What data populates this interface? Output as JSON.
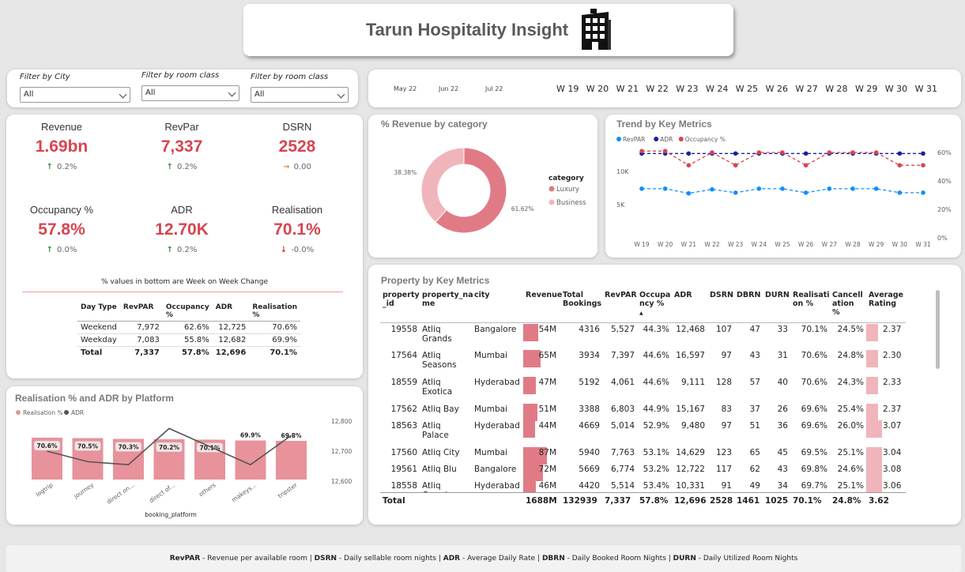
{
  "title": "Tarun Hospitality Insight",
  "filters": [
    {
      "label": "Filter by City",
      "value": "All"
    },
    {
      "label": "Filter by room class",
      "value": "All"
    },
    {
      "label": "Filter by room class",
      "value": "All"
    }
  ],
  "timeline": {
    "months": [
      "May 22",
      "Jun 22",
      "Jul 22"
    ],
    "weeks": [
      "W 19",
      "W 20",
      "W 21",
      "W 22",
      "W 23",
      "W 24",
      "W 25",
      "W 26",
      "W 27",
      "W 28",
      "W 29",
      "W 30",
      "W 31"
    ]
  },
  "kpis": [
    {
      "label": "Revenue",
      "value": "1.69bn",
      "delta": "0.2%",
      "dir": "up"
    },
    {
      "label": "RevPar",
      "value": "7,337",
      "delta": "0.2%",
      "dir": "up"
    },
    {
      "label": "DSRN",
      "value": "2528",
      "delta": "0.00",
      "dir": "flat"
    },
    {
      "label": "Occupancy %",
      "value": "57.8%",
      "delta": "0.0%",
      "dir": "up"
    },
    {
      "label": "ADR",
      "value": "12.70K",
      "delta": "0.2%",
      "dir": "up"
    },
    {
      "label": "Realisation",
      "value": "70.1%",
      "delta": "-0.0%",
      "dir": "down"
    }
  ],
  "wow_note": "% values in bottom are Week on Week Change",
  "daytype_table": {
    "headers": [
      "Day Type",
      "RevPAR",
      "Occupancy %",
      "ADR",
      "Realisation %"
    ],
    "rows": [
      [
        "Weekend",
        "7,972",
        "62.6%",
        "12,725",
        "70.6%"
      ],
      [
        "Weekday",
        "7,083",
        "55.8%",
        "12,682",
        "69.9%"
      ]
    ],
    "total": [
      "Total",
      "7,337",
      "57.8%",
      "12,696",
      "70.1%"
    ]
  },
  "category_chart": {
    "title": "% Revenue by category",
    "legend_title": "category",
    "colors": {
      "Luxury": "#e07b86",
      "Business": "#f0b5bb"
    },
    "chart_data": {
      "type": "pie",
      "categories": [
        "Luxury",
        "Business"
      ],
      "values": [
        61.62,
        38.38
      ],
      "labels": [
        "61.62%",
        "38.38%"
      ]
    }
  },
  "trend_chart": {
    "title": "Trend by Key Metrics",
    "legend": [
      "RevPAR",
      "ADR",
      "Occupancy %"
    ],
    "colors": {
      "RevPAR": "#118dff",
      "ADR": "#12239e",
      "Occupancy %": "#d64550"
    },
    "left_ticks": [
      "10K",
      "5K"
    ],
    "right_ticks": [
      "60%",
      "40%",
      "20%",
      "0%"
    ],
    "chart_data": {
      "type": "line",
      "x": [
        "W 19",
        "W 20",
        "W 21",
        "W 22",
        "W 23",
        "W 24",
        "W 25",
        "W 26",
        "W 27",
        "W 28",
        "W 29",
        "W 30",
        "W 31"
      ],
      "series": [
        {
          "name": "RevPAR",
          "axis": "left",
          "values": [
            7400,
            7400,
            6700,
            7300,
            6800,
            7400,
            7400,
            6800,
            7400,
            7400,
            7400,
            6800,
            6800
          ]
        },
        {
          "name": "ADR",
          "axis": "left",
          "values": [
            12700,
            12700,
            12700,
            12700,
            12700,
            12700,
            12700,
            12700,
            12700,
            12700,
            12700,
            12700,
            12700
          ]
        },
        {
          "name": "Occupancy %",
          "axis": "right",
          "values": [
            61,
            61,
            51,
            60,
            51,
            60,
            60,
            51,
            60,
            60,
            60,
            51,
            51
          ]
        }
      ],
      "ylim_left": [
        0,
        15000
      ],
      "ylim_right": [
        0,
        70
      ]
    }
  },
  "property_table": {
    "title": "Property by Key Metrics",
    "headers": [
      "property_id",
      "property_name",
      "city",
      "Revenue",
      "Total Bookings",
      "RevPAR",
      "Occupancy %",
      "ADR",
      "DSRN",
      "DBRN",
      "DURN",
      "Realisation %",
      "Cancellation %",
      "Average Rating"
    ],
    "header_display": [
      "property\n_id",
      "property_na\nme",
      "city",
      "Revenue",
      "Total\nBookings",
      "RevPAR",
      "Occupa\nncy %",
      "ADR",
      "DSRN",
      "DBRN",
      "DURN",
      "Realisati\non %",
      "Cancell\nation %",
      "Average\nRating"
    ],
    "rows": [
      {
        "id": "19558",
        "name": "Atliq Grands",
        "city": "Bangalore",
        "revenue": "54M",
        "rev_val": 54,
        "bookings": "4316",
        "revpar": "5,527",
        "occ": "44.3%",
        "adr": "12,468",
        "dsrn": "107",
        "dbrn": "47",
        "durn": "33",
        "real": "70.1%",
        "canc": "24.5%",
        "rating": "2.37",
        "rating_val": 2.37
      },
      {
        "id": "17564",
        "name": "Atliq Seasons",
        "city": "Mumbai",
        "revenue": "65M",
        "rev_val": 65,
        "bookings": "3934",
        "revpar": "7,397",
        "occ": "44.6%",
        "adr": "16,597",
        "dsrn": "97",
        "dbrn": "43",
        "durn": "31",
        "real": "70.6%",
        "canc": "24.8%",
        "rating": "2.30",
        "rating_val": 2.3
      },
      {
        "id": "18559",
        "name": "Atliq Exotica",
        "city": "Hyderabad",
        "revenue": "47M",
        "rev_val": 47,
        "bookings": "5192",
        "revpar": "4,061",
        "occ": "44.6%",
        "adr": "9,111",
        "dsrn": "128",
        "dbrn": "57",
        "durn": "40",
        "real": "70.6%",
        "canc": "24.3%",
        "rating": "2.33",
        "rating_val": 2.33
      },
      {
        "id": "17562",
        "name": "Atliq Bay",
        "city": "Mumbai",
        "revenue": "51M",
        "rev_val": 51,
        "bookings": "3388",
        "revpar": "6,803",
        "occ": "44.9%",
        "adr": "15,167",
        "dsrn": "83",
        "dbrn": "37",
        "durn": "26",
        "real": "69.6%",
        "canc": "25.4%",
        "rating": "2.37",
        "rating_val": 2.37
      },
      {
        "id": "18563",
        "name": "Atliq Palace",
        "city": "Hyderabad",
        "revenue": "44M",
        "rev_val": 44,
        "bookings": "4669",
        "revpar": "5,014",
        "occ": "52.9%",
        "adr": "9,480",
        "dsrn": "97",
        "dbrn": "51",
        "durn": "36",
        "real": "69.6%",
        "canc": "26.0%",
        "rating": "3.07",
        "rating_val": 3.07
      },
      {
        "id": "17560",
        "name": "Atliq City",
        "city": "Mumbai",
        "revenue": "87M",
        "rev_val": 87,
        "bookings": "5940",
        "revpar": "7,763",
        "occ": "53.1%",
        "adr": "14,629",
        "dsrn": "123",
        "dbrn": "65",
        "durn": "45",
        "real": "69.5%",
        "canc": "25.1%",
        "rating": "3.04",
        "rating_val": 3.04
      },
      {
        "id": "19561",
        "name": "Atliq Blu",
        "city": "Bangalore",
        "revenue": "72M",
        "rev_val": 72,
        "bookings": "5669",
        "revpar": "6,774",
        "occ": "53.2%",
        "adr": "12,722",
        "dsrn": "117",
        "dbrn": "62",
        "durn": "43",
        "real": "69.8%",
        "canc": "24.6%",
        "rating": "3.08",
        "rating_val": 3.08
      },
      {
        "id": "18558",
        "name": "Atliq Grands",
        "city": "Hyderabad",
        "revenue": "46M",
        "rev_val": 46,
        "bookings": "4420",
        "revpar": "5,514",
        "occ": "53.4%",
        "adr": "10,331",
        "dsrn": "91",
        "dbrn": "49",
        "durn": "34",
        "real": "69.7%",
        "canc": "25.1%",
        "rating": "3.06",
        "rating_val": 3.06
      }
    ],
    "total": {
      "label": "Total",
      "revenue": "1688M",
      "bookings": "132939",
      "revpar": "7,337",
      "occ": "57.8%",
      "adr": "12,696",
      "dsrn": "2528",
      "dbrn": "1461",
      "durn": "1025",
      "real": "70.1%",
      "canc": "24.8%",
      "rating": "3.62"
    }
  },
  "platform_chart": {
    "title": "Realisation % and ADR by Platform",
    "legend": [
      "Realisation %",
      "ADR"
    ],
    "colors": {
      "Realisation %": "#e8929b",
      "ADR": "#555555"
    },
    "xlabel": "booking_platform",
    "right_ticks": [
      "12,800",
      "12,700",
      "12,600"
    ],
    "chart_data": {
      "type": "bar",
      "categories": [
        "logtrip",
        "journey",
        "direct on...",
        "direct of...",
        "others",
        "makeys...",
        "tripster"
      ],
      "series": [
        {
          "name": "Realisation %",
          "values": [
            70.6,
            70.5,
            70.3,
            70.2,
            70.1,
            69.9,
            69.8
          ],
          "labels": [
            "70.6%",
            "70.5%",
            "70.3%",
            "70.2%",
            "70.1%",
            "69.9%",
            "69.8%"
          ]
        },
        {
          "name": "ADR",
          "values": [
            12700,
            12665,
            12655,
            12775,
            12715,
            12655,
            12752
          ]
        }
      ],
      "ylim_right": [
        12590,
        12810
      ]
    }
  },
  "footer": [
    {
      "abbr": "RevPAR",
      "desc": " - Revenue per available room | "
    },
    {
      "abbr": "DSRN",
      "desc": " - Daily sellable room nights | "
    },
    {
      "abbr": "ADR",
      "desc": " - Average Daily Rate | "
    },
    {
      "abbr": "DBRN",
      "desc": " - Daily Booked Room Nights | "
    },
    {
      "abbr": "DURN",
      "desc": " - Daily Utilized Room Nights"
    }
  ]
}
